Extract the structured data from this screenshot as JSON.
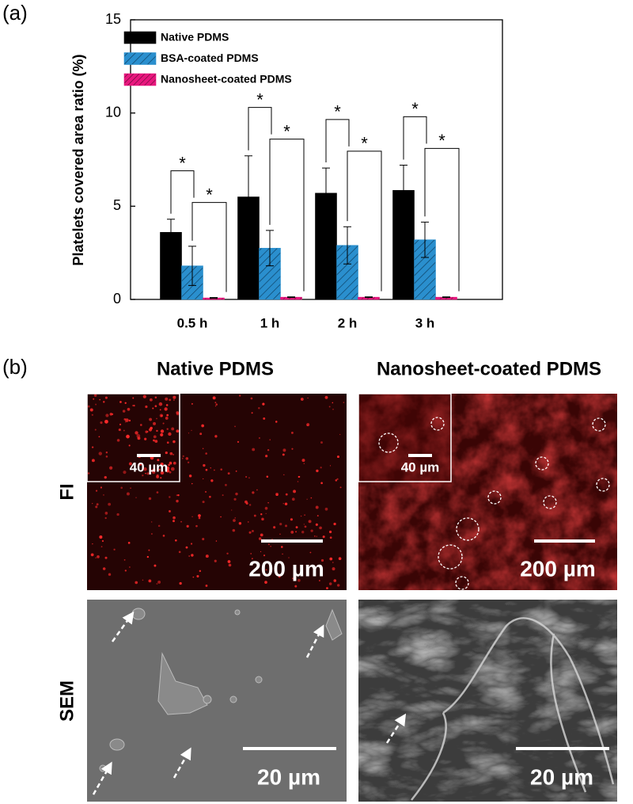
{
  "panel_labels": [
    "(a)",
    "(b)"
  ],
  "chart_data": {
    "type": "bar",
    "ylabel": "Platelets covered area ratio (%)",
    "categories": [
      "0.5 h",
      "1 h",
      "2 h",
      "3 h"
    ],
    "series": [
      {
        "name": "Native PDMS",
        "color": "#000000",
        "values": [
          3.6,
          5.5,
          5.7,
          5.85
        ],
        "errors": [
          0.7,
          2.2,
          1.35,
          1.35
        ]
      },
      {
        "name": "BSA-coated PDMS",
        "color": "#2a8fce",
        "hatch": true,
        "values": [
          1.8,
          2.75,
          2.9,
          3.2
        ],
        "errors": [
          1.05,
          0.95,
          1.0,
          0.95
        ]
      },
      {
        "name": "Nanosheet-coated PDMS",
        "color": "#e8177e",
        "hatch": true,
        "values": [
          0.08,
          0.12,
          0.12,
          0.12
        ],
        "errors": [
          0.02,
          0.02,
          0.02,
          0.02
        ]
      }
    ],
    "annotations": [
      "*",
      "*",
      "*",
      "*",
      "*",
      "*",
      "*",
      "*"
    ],
    "ylim": [
      0,
      15
    ],
    "yticks": [
      0,
      5,
      10,
      15
    ],
    "legend": "upper left"
  },
  "micrographs": {
    "columns": [
      "Native PDMS",
      "Nanosheet-coated PDMS"
    ],
    "rows": [
      "FI",
      "SEM"
    ],
    "images": [
      {
        "inset_scale": "40 µm",
        "scale": "200 µm"
      },
      {
        "inset_scale": "40 µm",
        "scale": "200 µm"
      },
      {
        "scale": "20 µm"
      },
      {
        "scale": "20 µm"
      }
    ]
  }
}
